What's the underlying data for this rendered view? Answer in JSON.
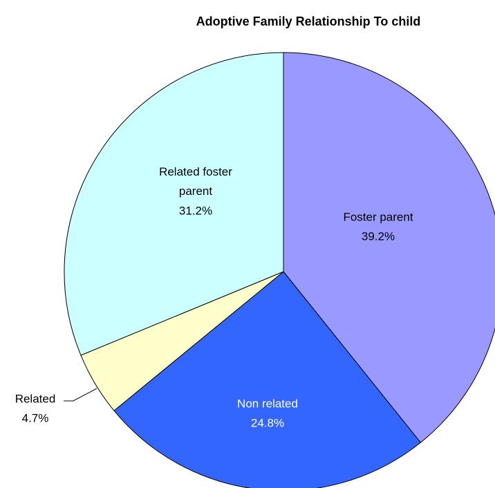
{
  "chart_data": {
    "type": "pie",
    "title": "Adoptive Family Relationship To child",
    "categories": [
      "Foster parent",
      "Non related",
      "Related",
      "Related foster parent"
    ],
    "values": [
      39.2,
      24.8,
      4.7,
      31.2
    ],
    "value_labels": [
      "39.2%",
      "24.8%",
      "4.7%",
      "31.2%"
    ],
    "colors": [
      "#9999ff",
      "#3366ff",
      "#ffffcc",
      "#ccffff"
    ]
  }
}
